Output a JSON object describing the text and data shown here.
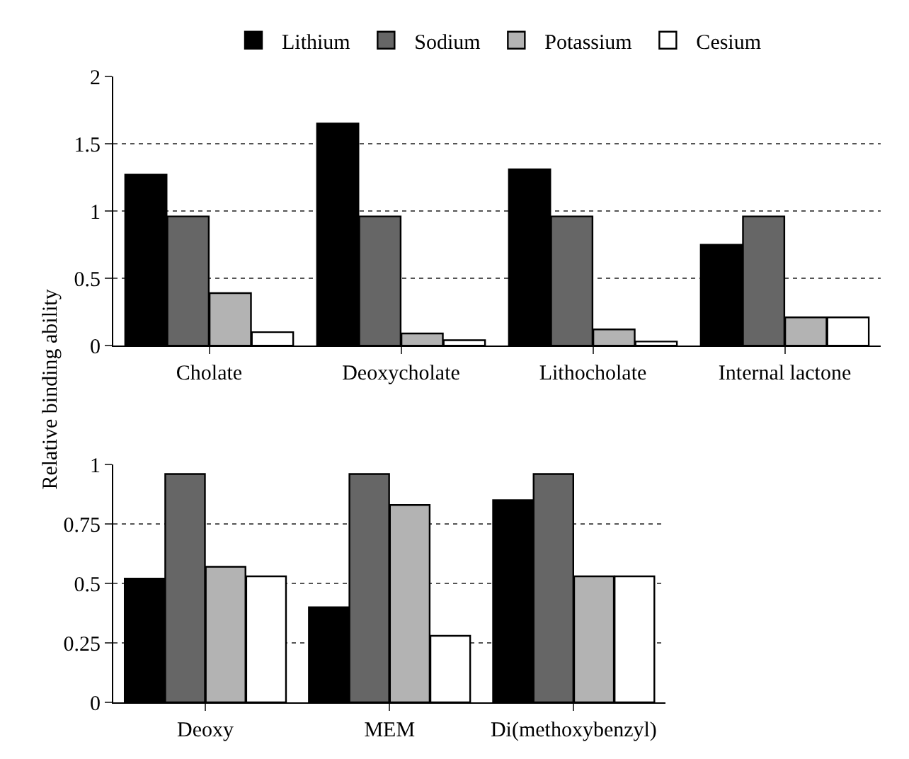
{
  "chart_data": [
    {
      "type": "bar",
      "ylabel": "Relative binding ability",
      "categories": [
        "Cholate",
        "Deoxycholate",
        "Lithocholate",
        "Internal lactone"
      ],
      "ylim": [
        0,
        2
      ],
      "yticks": [
        0,
        0.5,
        1,
        1.5,
        2
      ],
      "grid": "y",
      "legend": "top",
      "series": [
        {
          "name": "Lithium",
          "color": "#000000",
          "values": [
            1.27,
            1.65,
            1.31,
            0.75
          ]
        },
        {
          "name": "Sodium",
          "color": "#666666",
          "values": [
            0.96,
            0.96,
            0.96,
            0.96
          ]
        },
        {
          "name": "Potassium",
          "color": "#b3b3b3",
          "values": [
            0.39,
            0.09,
            0.12,
            0.21
          ]
        },
        {
          "name": "Cesium",
          "color": "#ffffff",
          "values": [
            0.1,
            0.04,
            0.03,
            0.21
          ]
        }
      ]
    },
    {
      "type": "bar",
      "categories": [
        "Deoxy",
        "MEM",
        "Di(methoxybenzyl)"
      ],
      "ylim": [
        0,
        1
      ],
      "yticks": [
        0,
        0.25,
        0.5,
        0.75,
        1
      ],
      "grid": "y",
      "legend": false,
      "series": [
        {
          "color": "#000000",
          "values": [
            0.52,
            0.4,
            0.85
          ]
        },
        {
          "color": "#666666",
          "values": [
            0.96,
            0.96,
            0.96
          ]
        },
        {
          "color": "#b3b3b3",
          "values": [
            0.57,
            0.83,
            0.53
          ]
        },
        {
          "color": "#ffffff",
          "values": [
            0.53,
            0.28,
            0.53
          ]
        }
      ]
    }
  ]
}
